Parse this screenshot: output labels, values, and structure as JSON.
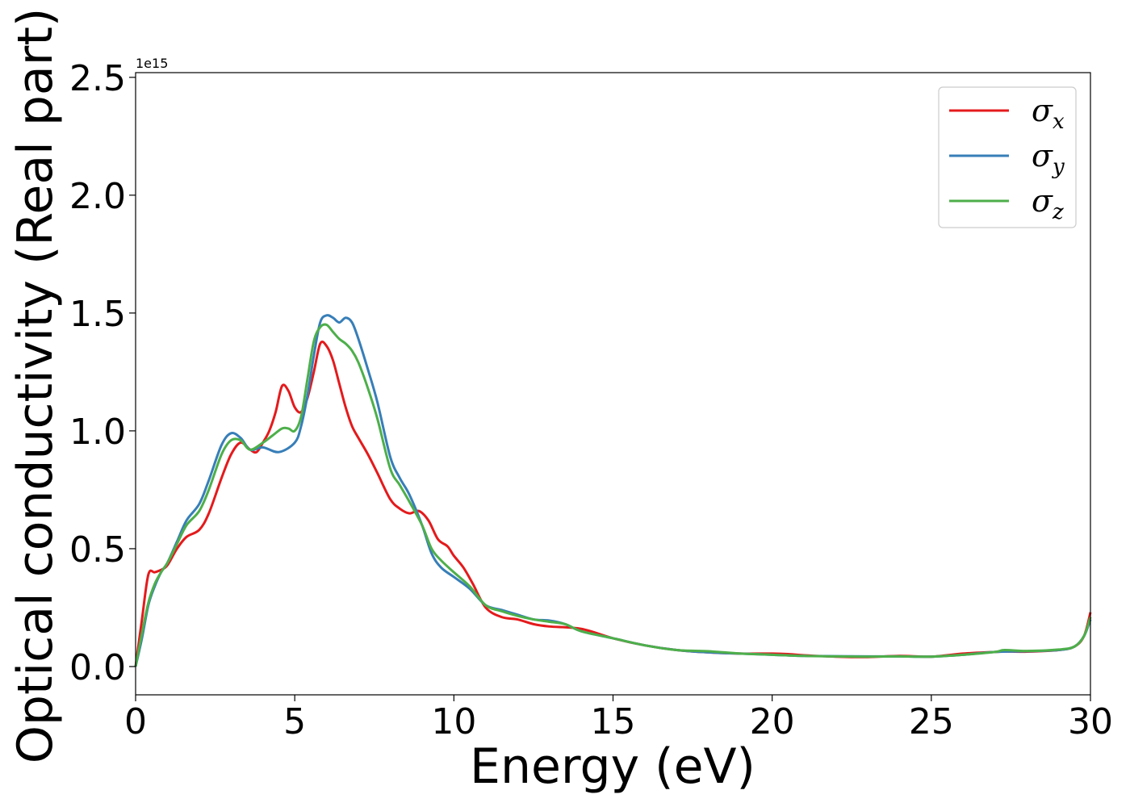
{
  "chart_data": {
    "type": "line",
    "title": "",
    "xlabel": "Energy (eV)",
    "ylabel": "Optical conductivity (Real part)",
    "y_offset_text": "1e15",
    "xlim": [
      0,
      30
    ],
    "ylim": [
      -0.12,
      2.52
    ],
    "xticks": [
      0,
      5,
      10,
      15,
      20,
      25,
      30
    ],
    "xtick_labels": [
      "0",
      "5",
      "10",
      "15",
      "20",
      "25",
      "30"
    ],
    "yticks": [
      0.0,
      0.5,
      1.0,
      1.5,
      2.0,
      2.5
    ],
    "ytick_labels": [
      "0.0",
      "0.5",
      "1.0",
      "1.5",
      "2.0",
      "2.5"
    ],
    "grid": false,
    "legend_position": "top-right",
    "series": [
      {
        "name": "σ",
        "subscript": "x",
        "color": "#e41a1c",
        "x": [
          0,
          0.2,
          0.4,
          0.6,
          0.8,
          1.0,
          1.3,
          1.6,
          2.0,
          2.3,
          2.7,
          3.0,
          3.3,
          3.6,
          3.8,
          4.0,
          4.2,
          4.4,
          4.6,
          4.8,
          5.0,
          5.2,
          5.4,
          5.6,
          5.8,
          6.0,
          6.2,
          6.4,
          6.6,
          6.8,
          7.0,
          7.3,
          7.6,
          8.0,
          8.3,
          8.6,
          8.9,
          9.2,
          9.5,
          9.8,
          10.0,
          10.3,
          10.6,
          11.0,
          11.5,
          12.0,
          12.5,
          13.0,
          14.0,
          15.0,
          16.0,
          17.0,
          18.0,
          19.0,
          20.0,
          20.5,
          21.0,
          22.0,
          23.0,
          24.0,
          25.0,
          26.0,
          27.0,
          27.3,
          28.0,
          29.0,
          29.5,
          29.8,
          30.0
        ],
        "values": [
          0.0,
          0.2,
          0.39,
          0.4,
          0.41,
          0.43,
          0.5,
          0.55,
          0.58,
          0.65,
          0.8,
          0.9,
          0.95,
          0.92,
          0.91,
          0.95,
          1.0,
          1.08,
          1.19,
          1.17,
          1.1,
          1.08,
          1.14,
          1.25,
          1.37,
          1.36,
          1.3,
          1.2,
          1.1,
          1.02,
          0.97,
          0.9,
          0.82,
          0.71,
          0.67,
          0.65,
          0.66,
          0.62,
          0.54,
          0.51,
          0.47,
          0.42,
          0.35,
          0.25,
          0.21,
          0.2,
          0.18,
          0.17,
          0.16,
          0.12,
          0.09,
          0.07,
          0.06,
          0.055,
          0.055,
          0.053,
          0.048,
          0.042,
          0.04,
          0.045,
          0.042,
          0.055,
          0.062,
          0.064,
          0.063,
          0.07,
          0.085,
          0.13,
          0.23
        ]
      },
      {
        "name": "σ",
        "subscript": "y",
        "color": "#377eb8",
        "x": [
          0,
          0.2,
          0.4,
          0.6,
          0.8,
          1.0,
          1.3,
          1.6,
          2.0,
          2.3,
          2.7,
          3.0,
          3.3,
          3.6,
          4.0,
          4.5,
          5.0,
          5.2,
          5.4,
          5.6,
          5.8,
          6.0,
          6.2,
          6.4,
          6.6,
          6.8,
          7.0,
          7.3,
          7.6,
          8.0,
          8.3,
          8.6,
          9.0,
          9.3,
          9.6,
          10.0,
          10.5,
          11.0,
          11.5,
          12.0,
          12.5,
          13.0,
          13.5,
          14.0,
          15.0,
          16.0,
          17.0,
          18.0,
          19.0,
          20.0,
          21.0,
          22.0,
          23.0,
          24.0,
          25.0,
          26.0,
          27.0,
          28.0,
          29.0,
          29.5,
          29.8,
          30.0
        ],
        "values": [
          0.0,
          0.12,
          0.26,
          0.34,
          0.4,
          0.44,
          0.53,
          0.62,
          0.69,
          0.79,
          0.94,
          0.99,
          0.97,
          0.92,
          0.93,
          0.91,
          0.95,
          1.02,
          1.15,
          1.32,
          1.46,
          1.49,
          1.48,
          1.46,
          1.48,
          1.46,
          1.39,
          1.26,
          1.12,
          0.89,
          0.8,
          0.73,
          0.6,
          0.48,
          0.42,
          0.38,
          0.33,
          0.26,
          0.24,
          0.22,
          0.2,
          0.195,
          0.18,
          0.15,
          0.12,
          0.09,
          0.07,
          0.06,
          0.055,
          0.05,
          0.045,
          0.044,
          0.043,
          0.043,
          0.042,
          0.05,
          0.062,
          0.065,
          0.07,
          0.085,
          0.13,
          0.2
        ]
      },
      {
        "name": "σ",
        "subscript": "z",
        "color": "#4daf4a",
        "x": [
          0,
          0.2,
          0.4,
          0.6,
          0.8,
          1.0,
          1.3,
          1.6,
          2.0,
          2.3,
          2.7,
          3.0,
          3.3,
          3.6,
          4.0,
          4.3,
          4.6,
          4.8,
          5.0,
          5.2,
          5.4,
          5.6,
          5.8,
          6.0,
          6.2,
          6.4,
          6.6,
          6.8,
          7.0,
          7.3,
          7.6,
          8.0,
          8.3,
          8.6,
          9.0,
          9.3,
          9.6,
          10.0,
          10.5,
          11.0,
          11.5,
          12.0,
          12.5,
          13.0,
          13.5,
          14.0,
          15.0,
          16.0,
          17.0,
          18.0,
          19.0,
          20.0,
          21.0,
          22.0,
          23.0,
          24.0,
          25.0,
          26.0,
          27.0,
          27.3,
          28.0,
          29.0,
          29.5,
          29.8,
          30.0
        ],
        "values": [
          0.0,
          0.14,
          0.27,
          0.35,
          0.4,
          0.44,
          0.52,
          0.6,
          0.66,
          0.75,
          0.9,
          0.96,
          0.96,
          0.92,
          0.95,
          0.98,
          1.01,
          1.01,
          1.0,
          1.06,
          1.22,
          1.38,
          1.44,
          1.45,
          1.42,
          1.39,
          1.37,
          1.34,
          1.29,
          1.18,
          1.05,
          0.84,
          0.77,
          0.7,
          0.6,
          0.5,
          0.45,
          0.4,
          0.34,
          0.26,
          0.235,
          0.215,
          0.2,
          0.19,
          0.18,
          0.15,
          0.12,
          0.09,
          0.07,
          0.065,
          0.055,
          0.05,
          0.045,
          0.043,
          0.042,
          0.043,
          0.042,
          0.05,
          0.062,
          0.07,
          0.066,
          0.072,
          0.085,
          0.13,
          0.21
        ]
      }
    ]
  }
}
